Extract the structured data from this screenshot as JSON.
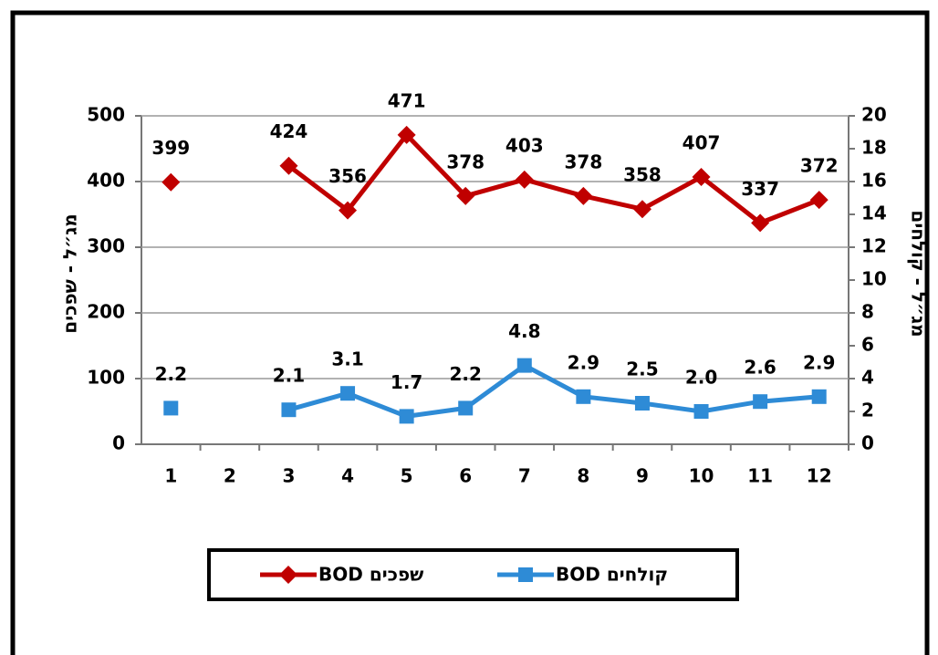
{
  "chart_data": {
    "type": "line",
    "categories": [
      "1",
      "2",
      "3",
      "4",
      "5",
      "6",
      "7",
      "8",
      "9",
      "10",
      "11",
      "12"
    ],
    "ylabel": "מג״ל - שפכים",
    "y2label": "מג״ל - קולחים",
    "ylim": [
      0,
      500
    ],
    "yticks": [
      0,
      100,
      200,
      300,
      400,
      500
    ],
    "y2lim": [
      0,
      20
    ],
    "y2ticks": [
      0,
      2,
      4,
      6,
      8,
      10,
      12,
      14,
      16,
      18,
      20
    ],
    "grid": true,
    "series": [
      {
        "name": "BOD שפכים",
        "color": "#c00000",
        "marker": "diamond",
        "values": [
          399,
          null,
          424,
          356,
          471,
          378,
          403,
          378,
          358,
          407,
          337,
          372
        ]
      },
      {
        "name": "BOD קולחים",
        "color": "#2e8bd6",
        "marker": "square",
        "axis": "y2",
        "values": [
          2.2,
          null,
          2.1,
          3.1,
          1.7,
          2.2,
          4.8,
          2.9,
          2.5,
          2.0,
          2.6,
          2.9
        ],
        "value_labels": [
          "2.2",
          null,
          "2.1",
          "3.1",
          "1.7",
          "2.2",
          "4.8",
          "2.9",
          "2.5",
          "2.0",
          "2.6",
          "2.9"
        ]
      }
    ]
  }
}
